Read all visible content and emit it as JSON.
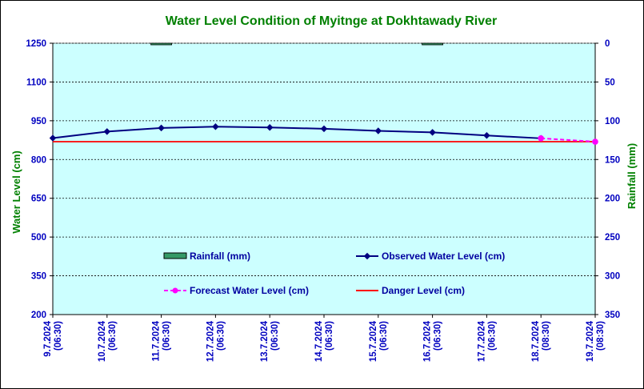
{
  "chart_data": {
    "type": "line",
    "title": "Water Level Condition of Myitnge at Dokhtawady River",
    "ylabel": "Water Level (cm)",
    "y2label": "Rainfall (mm)",
    "ylim": [
      200,
      1250
    ],
    "y2lim": [
      350,
      0
    ],
    "yticks": [
      "1250",
      "1100",
      "950",
      "800",
      "650",
      "500",
      "350",
      "200"
    ],
    "y2ticks": [
      "0",
      "50",
      "100",
      "150",
      "200",
      "250",
      "300",
      "350"
    ],
    "categories": [
      "9.7.2024 (06:30)",
      "10.7.2024 (06:30)",
      "11.7.2024 (06:30)",
      "12.7.2024 (06:30)",
      "13.7.2024 (06:30)",
      "14.7.2024 (06:30)",
      "15.7.2024 (06:30)",
      "16.7.2024 (06:30)",
      "17.7.2024 (06:30)",
      "18.7.2024 (08:30)",
      "19.7.2024 (08:30)"
    ],
    "category_lines": [
      [
        "9.7.2024",
        "(06:30)"
      ],
      [
        "10.7.2024",
        "(06:30)"
      ],
      [
        "11.7.2024",
        "(06:30)"
      ],
      [
        "12.7.2024",
        "(06:30)"
      ],
      [
        "13.7.2024",
        "(06:30)"
      ],
      [
        "14.7.2024",
        "(06:30)"
      ],
      [
        "15.7.2024",
        "(06:30)"
      ],
      [
        "16.7.2024",
        "(06:30)"
      ],
      [
        "17.7.2024",
        "(06:30)"
      ],
      [
        "18.7.2024",
        "(08:30)"
      ],
      [
        "19.7.2024",
        "(08:30)"
      ]
    ],
    "series": [
      {
        "name": "Rainfall (mm)",
        "axis": "right",
        "kind": "bar",
        "color": "#339966",
        "values": [
          null,
          null,
          1,
          null,
          null,
          null,
          null,
          1,
          null,
          null,
          null
        ]
      },
      {
        "name": "Observed Water Level (cm)",
        "axis": "left",
        "kind": "line",
        "color": "#000080",
        "values": [
          883,
          908,
          922,
          927,
          924,
          919,
          911,
          905,
          893,
          882,
          null
        ]
      },
      {
        "name": "Forecast Water Level (cm)",
        "axis": "left",
        "kind": "dashed-line",
        "color": "#ff00ff",
        "values": [
          null,
          null,
          null,
          null,
          null,
          null,
          null,
          null,
          null,
          882,
          869
        ]
      },
      {
        "name": "Danger Level (cm)",
        "axis": "left",
        "kind": "line",
        "color": "#ff0000",
        "values": [
          869,
          869,
          869,
          869,
          869,
          869,
          869,
          869,
          869,
          869,
          869
        ]
      }
    ],
    "grid": "horizontal-dashed",
    "plot_background": "#ccffff",
    "legend": "inside-bottom"
  }
}
